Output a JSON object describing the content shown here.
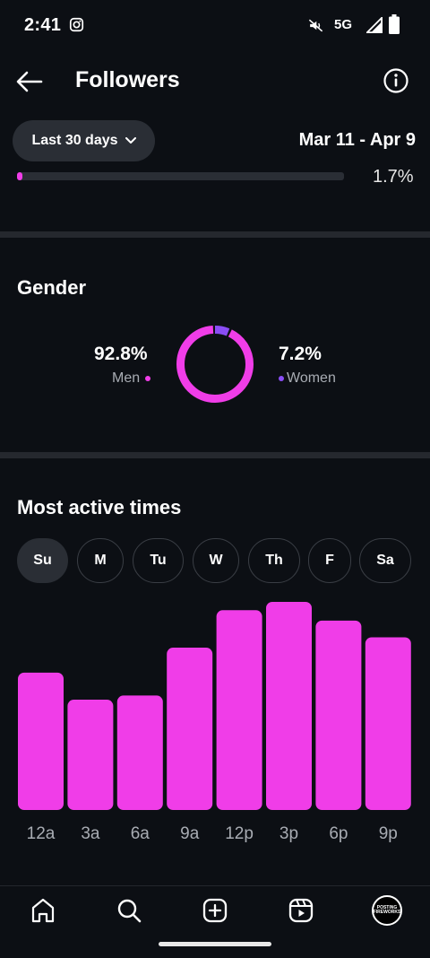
{
  "status_bar": {
    "time": "2:41",
    "network": "5G"
  },
  "app_bar": {
    "title": "Followers"
  },
  "filter": {
    "range_label": "Last 30 days",
    "date_range": "Mar 11 - Apr 9"
  },
  "previous_section": {
    "percent_label": "1.7%",
    "progress": 0.017
  },
  "gender": {
    "title": "Gender",
    "men": {
      "value": "92.8%",
      "label": "Men",
      "share": 0.928
    },
    "women": {
      "value": "7.2%",
      "label": "Women",
      "share": 0.072
    },
    "colors": {
      "men": "#f03de8",
      "women": "#8a4df5"
    }
  },
  "active_times": {
    "title": "Most active times",
    "days": [
      {
        "label": "Su",
        "selected": true
      },
      {
        "label": "M",
        "selected": false
      },
      {
        "label": "Tu",
        "selected": false
      },
      {
        "label": "W",
        "selected": false
      },
      {
        "label": "Th",
        "selected": false
      },
      {
        "label": "F",
        "selected": false
      },
      {
        "label": "Sa",
        "selected": false
      }
    ]
  },
  "chart_data": {
    "type": "bar",
    "categories": [
      "12a",
      "3a",
      "6a",
      "9a",
      "12p",
      "3p",
      "6p",
      "9p"
    ],
    "values": [
      66,
      53,
      55,
      78,
      96,
      100,
      91,
      83
    ],
    "ylim": [
      0,
      100
    ],
    "grid": false,
    "color": "#f03de8"
  },
  "bottom_nav": {
    "items": [
      "home-icon",
      "search-icon",
      "create-icon",
      "reels-icon",
      "profile-avatar"
    ],
    "avatar_text": [
      "POSTING",
      "FIREWORKS"
    ]
  },
  "theme": {
    "background": "#0c0f14",
    "accent": "#f03de8",
    "surface": "#2a2e35"
  }
}
